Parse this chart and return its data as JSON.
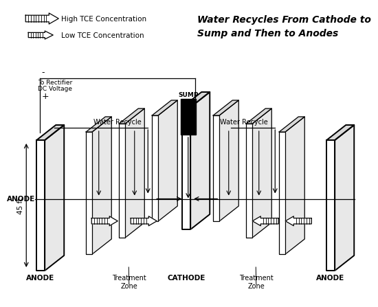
{
  "title": "Water Recycles From Cathode to\nSump and Then to Anodes",
  "title_fontsize": 10,
  "title_style": "italic",
  "title_weight": "bold",
  "bg_color": "#ffffff",
  "legend_arrow_high_label": "High TCE Concentration",
  "legend_arrow_low_label": "Low TCE Concentration",
  "label_anode_left": "ANODE",
  "label_anode_right": "ANODE",
  "label_cathode": "CATHODE",
  "label_sump": "SUMP",
  "label_45ft": "45 ft",
  "label_treatment_zone_left": "Treatment\nZone",
  "label_treatment_zone_right": "Treatment\nZone",
  "label_water_recycle_left": "Water Recycle",
  "label_water_recycle_right": "Water Recycle",
  "label_rectifier_line1": "To Rectifier",
  "label_rectifier_line2": "DC Voltage",
  "label_minus": "-",
  "label_plus": "+",
  "text_color": "#000000",
  "plate_color": "#000000"
}
